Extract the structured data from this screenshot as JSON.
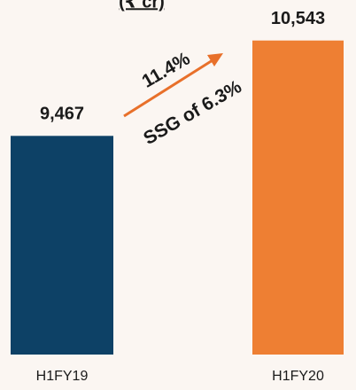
{
  "chart_data": {
    "type": "bar",
    "title": "(₹ cr)",
    "categories": [
      "H1FY19",
      "H1FY20"
    ],
    "values": [
      9467,
      10543
    ],
    "value_labels": [
      "9,467",
      "10,543"
    ],
    "colors": [
      "#0d4166",
      "#ee7f33"
    ],
    "ylim": [
      7000,
      11000
    ],
    "annotations": [
      "11.4%",
      "SSG of 6.3%"
    ],
    "arrow_color": "#e8702a"
  }
}
